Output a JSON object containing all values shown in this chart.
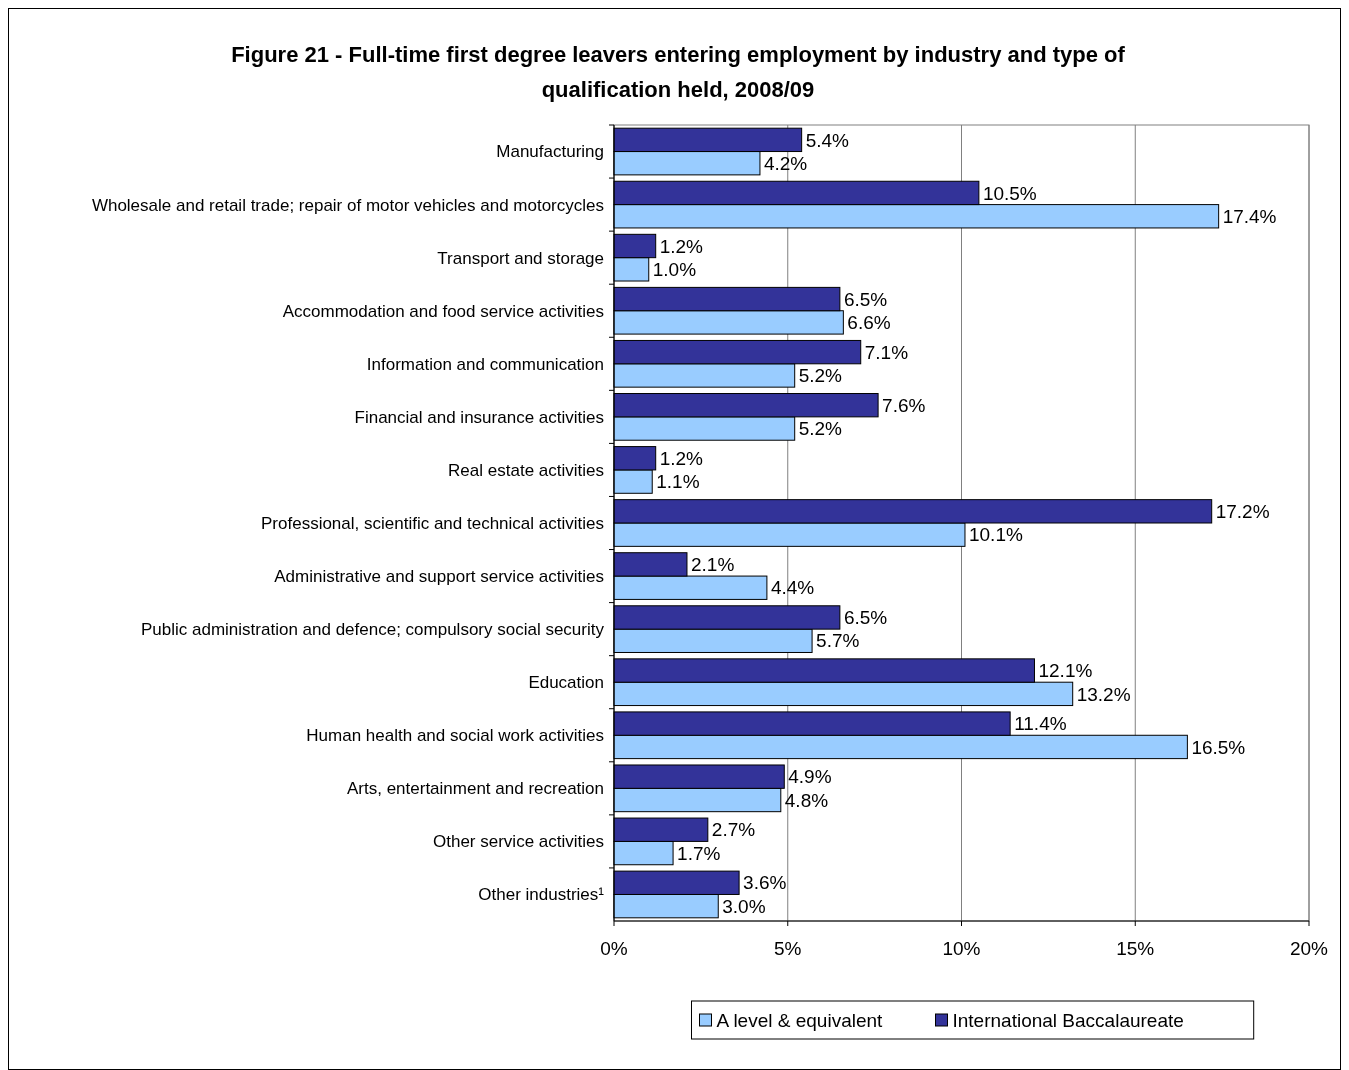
{
  "chart_data": {
    "type": "bar",
    "orientation": "horizontal",
    "title": "Figure 21 - Full-time first degree leavers entering employment by industry and type of qualification held, 2008/09",
    "categories": [
      "Manufacturing",
      "Wholesale and retail trade; repair of motor vehicles and motorcycles",
      "Transport and storage",
      "Accommodation and food service activities",
      "Information and communication",
      "Financial and insurance activities",
      "Real estate activities",
      "Professional, scientific and technical activities",
      "Administrative and support service activities",
      "Public administration and defence; compulsory social security",
      "Education",
      "Human health and social work activities",
      "Arts, entertainment and recreation",
      "Other service activities",
      "Other industries¹"
    ],
    "series": [
      {
        "name": "A level & equivalent",
        "color": "#99ccff",
        "values": [
          4.2,
          17.4,
          1.0,
          6.6,
          5.2,
          5.2,
          1.1,
          10.1,
          4.4,
          5.7,
          13.2,
          16.5,
          4.8,
          1.7,
          3.0
        ],
        "value_labels": [
          "4.2%",
          "17.4%",
          "1.0%",
          "6.6%",
          "5.2%",
          "5.2%",
          "1.1%",
          "10.1%",
          "4.4%",
          "5.7%",
          "13.2%",
          "16.5%",
          "4.8%",
          "1.7%",
          "3.0%"
        ]
      },
      {
        "name": "International Baccalaureate",
        "color": "#333399",
        "values": [
          5.4,
          10.5,
          1.2,
          6.5,
          7.1,
          7.6,
          1.2,
          17.2,
          2.1,
          6.5,
          12.1,
          11.4,
          4.9,
          2.7,
          3.6
        ],
        "value_labels": [
          "5.4%",
          "10.5%",
          "1.2%",
          "6.5%",
          "7.1%",
          "7.6%",
          "1.2%",
          "17.2%",
          "2.1%",
          "6.5%",
          "12.1%",
          "11.4%",
          "4.9%",
          "2.7%",
          "3.6%"
        ]
      }
    ],
    "xlim": [
      0,
      20
    ],
    "xticks": [
      {
        "value": 0,
        "label": "0%"
      },
      {
        "value": 5,
        "label": "5%"
      },
      {
        "value": 10,
        "label": "10%"
      },
      {
        "value": 15,
        "label": "15%"
      },
      {
        "value": 20,
        "label": "20%"
      }
    ],
    "grid": "x",
    "legend": "bottom"
  }
}
